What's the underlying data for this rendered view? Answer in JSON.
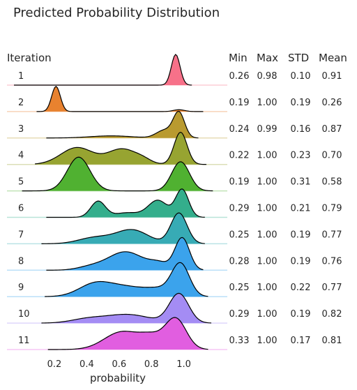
{
  "chart_data": {
    "type": "ridgeline",
    "title": "Predicted Probability Distribution",
    "xlabel": "probability",
    "row_header": "Iteration",
    "stat_headers": [
      "Min",
      "Max",
      "STD",
      "Mean"
    ],
    "x_ticks": [
      "0.2",
      "0.4",
      "0.6",
      "0.8",
      "1.0"
    ],
    "x_tick_values": [
      0.2,
      0.4,
      0.6,
      0.8,
      1.0
    ],
    "xlim": [
      -0.05,
      1.2
    ],
    "grid": false,
    "rows": [
      {
        "label": "1",
        "color": "#f77189",
        "min": "0.26",
        "max": "0.98",
        "std": "0.10",
        "mean": "0.91",
        "x_range": [
          -0.05,
          1.05
        ],
        "peaks": [
          [
            0.95,
            0.027,
            1.0
          ]
        ]
      },
      {
        "label": "2",
        "color": "#e8822f",
        "min": "0.19",
        "max": "1.00",
        "std": "0.19",
        "mean": "0.26",
        "x_range": [
          0.09,
          1.12
        ],
        "peaks": [
          [
            0.21,
            0.027,
            0.82
          ],
          [
            0.97,
            0.035,
            0.06
          ]
        ]
      },
      {
        "label": "3",
        "color": "#b99a2f",
        "min": "0.24",
        "max": "0.99",
        "std": "0.16",
        "mean": "0.87",
        "x_range": [
          0.15,
          1.09
        ],
        "peaks": [
          [
            0.97,
            0.035,
            0.82
          ],
          [
            0.88,
            0.05,
            0.25
          ],
          [
            0.55,
            0.13,
            0.07
          ]
        ]
      },
      {
        "label": "4",
        "color": "#97a431",
        "min": "0.22",
        "max": "1.00",
        "std": "0.23",
        "mean": "0.70",
        "x_range": [
          0.08,
          1.14
        ],
        "peaks": [
          [
            0.98,
            0.04,
            1.05
          ],
          [
            0.34,
            0.1,
            0.55
          ],
          [
            0.62,
            0.09,
            0.5
          ],
          [
            0.75,
            0.05,
            0.1
          ]
        ]
      },
      {
        "label": "5",
        "color": "#50b131",
        "min": "0.19",
        "max": "1.00",
        "std": "0.31",
        "mean": "0.58",
        "x_range": [
          0.0,
          1.18
        ],
        "peaks": [
          [
            0.35,
            0.07,
            1.1
          ],
          [
            0.98,
            0.055,
            0.95
          ]
        ]
      },
      {
        "label": "6",
        "color": "#34ae8c",
        "min": "0.29",
        "max": "1.00",
        "std": "0.21",
        "mean": "0.79",
        "x_range": [
          0.15,
          1.13
        ],
        "peaks": [
          [
            0.47,
            0.045,
            0.52
          ],
          [
            0.84,
            0.06,
            0.55
          ],
          [
            0.99,
            0.04,
            0.9
          ],
          [
            0.65,
            0.08,
            0.15
          ]
        ]
      },
      {
        "label": "7",
        "color": "#37abb5",
        "min": "0.25",
        "max": "1.00",
        "std": "0.19",
        "mean": "0.77",
        "x_range": [
          0.12,
          1.13
        ],
        "peaks": [
          [
            0.97,
            0.05,
            1.0
          ],
          [
            0.68,
            0.1,
            0.45
          ],
          [
            0.45,
            0.1,
            0.2
          ]
        ]
      },
      {
        "label": "8",
        "color": "#3ba3ec",
        "min": "0.28",
        "max": "1.00",
        "std": "0.19",
        "mean": "0.76",
        "x_range": [
          0.15,
          1.12
        ],
        "peaks": [
          [
            0.99,
            0.045,
            1.05
          ],
          [
            0.64,
            0.11,
            0.6
          ],
          [
            0.85,
            0.06,
            0.2
          ],
          [
            0.42,
            0.08,
            0.1
          ]
        ]
      },
      {
        "label": "9",
        "color": "#3ba3ec",
        "min": "0.25",
        "max": "1.00",
        "std": "0.22",
        "mean": "0.77",
        "x_range": [
          0.14,
          1.15
        ],
        "peaks": [
          [
            0.98,
            0.055,
            1.05
          ],
          [
            0.45,
            0.1,
            0.4
          ],
          [
            0.65,
            0.12,
            0.3
          ],
          [
            0.85,
            0.08,
            0.2
          ]
        ]
      },
      {
        "label": "10",
        "color": "#a48cf4",
        "min": "0.29",
        "max": "1.00",
        "std": "0.19",
        "mean": "0.82",
        "x_range": [
          0.12,
          1.17
        ],
        "peaks": [
          [
            0.97,
            0.06,
            0.95
          ],
          [
            0.65,
            0.14,
            0.28
          ],
          [
            0.4,
            0.1,
            0.12
          ]
        ]
      },
      {
        "label": "11",
        "color": "#e15ee0",
        "min": "0.33",
        "max": "1.00",
        "std": "0.17",
        "mean": "0.81",
        "x_range": [
          0.16,
          1.15
        ],
        "peaks": [
          [
            0.95,
            0.065,
            1.0
          ],
          [
            0.62,
            0.11,
            0.58
          ],
          [
            0.8,
            0.07,
            0.35
          ]
        ]
      }
    ]
  }
}
